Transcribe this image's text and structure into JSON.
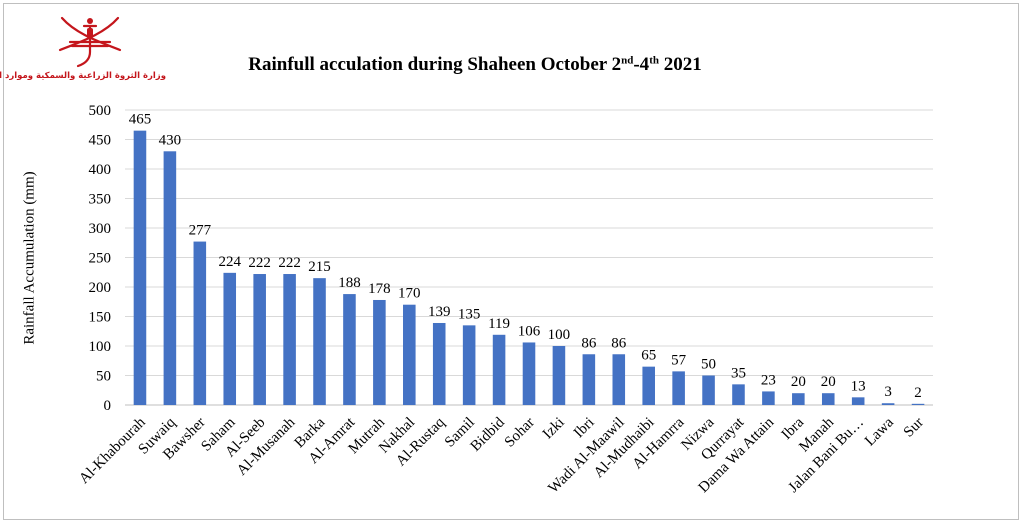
{
  "header": {
    "logo_text": "وزارة الثروة الزراعية والسمكية وموارد المياه"
  },
  "chart_data": {
    "type": "bar",
    "title": "Rainfull acculation during Shaheen October 2nd-4th 2021",
    "title_parts": {
      "pre": "Rainfull acculation during Shaheen October 2",
      "sup1": "nd",
      "mid": "-4",
      "sup2": "th",
      "post": " 2021"
    },
    "xlabel": "",
    "ylabel": "Rainfall Accumulation (mm)",
    "ylim": [
      0,
      500
    ],
    "yticks": [
      0,
      50,
      100,
      150,
      200,
      250,
      300,
      350,
      400,
      450,
      500
    ],
    "grid": true,
    "legend": "none",
    "bar_color": "#4472c4",
    "categories": [
      "Al-Khabourah",
      "Suwaiq",
      "Bawsher",
      "Saham",
      "Al-Seeb",
      "Al-Musanah",
      "Barka",
      "Al-Amrat",
      "Mutrah",
      "Nakhal",
      "Al-Rustaq",
      "Samil",
      "Bidbid",
      "Sohar",
      "Izki",
      "Ibri",
      "Wadi Al-Maawil",
      "Al-Mudhaibi",
      "Al-Hamrra",
      "Nizwa",
      "Qurrayat",
      "Dama Wa Attain",
      "Ibra",
      "Manah",
      "Jalan Bani Bu…",
      "Lawa",
      "Sur"
    ],
    "values": [
      465,
      430,
      277,
      224,
      222,
      222,
      215,
      188,
      178,
      170,
      139,
      135,
      119,
      106,
      100,
      86,
      86,
      65,
      57,
      50,
      35,
      23,
      20,
      20,
      13,
      3,
      2
    ]
  }
}
